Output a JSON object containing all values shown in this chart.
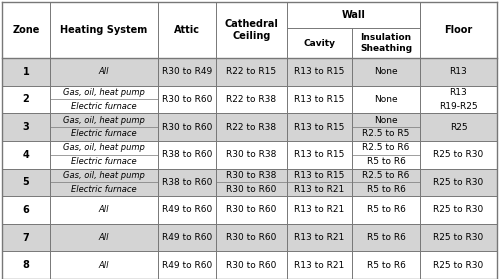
{
  "border_color": "#777777",
  "alt_row_bg": "#d4d4d4",
  "white_bg": "#ffffff",
  "rows": [
    {
      "zone": "1",
      "heating": [
        "All"
      ],
      "attic": "R30 to R49",
      "cathedral": "R22 to R15",
      "cavity": "R13 to R15",
      "insulation": [
        "None"
      ],
      "floor": [
        "R13"
      ],
      "bg": "#d4d4d4"
    },
    {
      "zone": "2",
      "heating": [
        "Gas, oil, heat pump",
        "Electric furnace"
      ],
      "attic": "R30 to R60",
      "cathedral": "R22 to R38",
      "cavity": "R13 to R15",
      "insulation": [
        "None"
      ],
      "floor": [
        "R13",
        "R19-R25"
      ],
      "bg": "#ffffff"
    },
    {
      "zone": "3",
      "heating": [
        "Gas, oil, heat pump",
        "Electric furnace"
      ],
      "attic": "R30 to R60",
      "cathedral": "R22 to R38",
      "cavity": "R13 to R15",
      "insulation": [
        "None",
        "R2.5 to R5"
      ],
      "floor": [
        "R25"
      ],
      "bg": "#d4d4d4"
    },
    {
      "zone": "4",
      "heating": [
        "Gas, oil, heat pump",
        "Electric furnace"
      ],
      "attic": "R38 to R60",
      "cathedral": "R30 to R38",
      "cavity": "R13 to R15",
      "insulation": [
        "R2.5 to R6",
        "R5 to R6"
      ],
      "floor": [
        "R25 to R30"
      ],
      "bg": "#ffffff"
    },
    {
      "zone": "5",
      "heating": [
        "Gas, oil, heat pump",
        "Electric furnace"
      ],
      "attic": "R38 to R60",
      "cathedral": [
        "R30 to R38",
        "R30 to R60"
      ],
      "cavity": [
        "R13 to R15",
        "R13 to R21"
      ],
      "insulation": [
        "R2.5 to R6",
        "R5 to R6"
      ],
      "floor": [
        "R25 to R30"
      ],
      "bg": "#d4d4d4"
    },
    {
      "zone": "6",
      "heating": [
        "All"
      ],
      "attic": "R49 to R60",
      "cathedral": "R30 to R60",
      "cavity": "R13 to R21",
      "insulation": [
        "R5 to R6"
      ],
      "floor": [
        "R25 to R30"
      ],
      "bg": "#ffffff"
    },
    {
      "zone": "7",
      "heating": [
        "All"
      ],
      "attic": "R49 to R60",
      "cathedral": "R30 to R60",
      "cavity": "R13 to R21",
      "insulation": [
        "R5 to R6"
      ],
      "floor": [
        "R25 to R30"
      ],
      "bg": "#d4d4d4"
    },
    {
      "zone": "8",
      "heating": [
        "All"
      ],
      "attic": "R49 to R60",
      "cathedral": "R30 to R60",
      "cavity": "R13 to R21",
      "insulation": [
        "R5 to R6"
      ],
      "floor": [
        "R25 to R30"
      ],
      "bg": "#ffffff"
    }
  ]
}
